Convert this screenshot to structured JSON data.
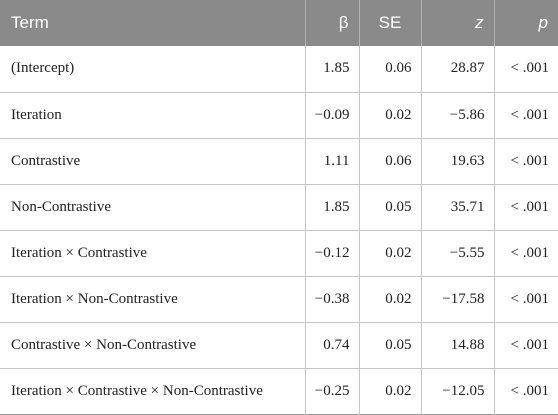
{
  "table": {
    "headers": {
      "term": "Term",
      "beta": "β",
      "se": "SE",
      "z": "z",
      "p": "p"
    },
    "rows": [
      {
        "term": "(Intercept)",
        "beta": "1.85",
        "se": "0.06",
        "z": "28.87",
        "p": "< .001"
      },
      {
        "term": "Iteration",
        "beta": "−0.09",
        "se": "0.02",
        "z": "−5.86",
        "p": "< .001"
      },
      {
        "term": "Contrastive",
        "beta": "1.11",
        "se": "0.06",
        "z": "19.63",
        "p": "< .001"
      },
      {
        "term": "Non-Contrastive",
        "beta": "1.85",
        "se": "0.05",
        "z": "35.71",
        "p": "< .001"
      },
      {
        "term": "Iteration × Contrastive",
        "beta": "−0.12",
        "se": "0.02",
        "z": "−5.55",
        "p": "< .001"
      },
      {
        "term": "Iteration × Non-Contrastive",
        "beta": "−0.38",
        "se": "0.02",
        "z": "−17.58",
        "p": "< .001"
      },
      {
        "term": "Contrastive × Non-Contrastive",
        "beta": "0.74",
        "se": "0.05",
        "z": "14.88",
        "p": "< .001"
      },
      {
        "term": "Iteration × Contrastive × Non-Contrastive",
        "beta": "−0.25",
        "se": "0.02",
        "z": "−12.05",
        "p": "< .001"
      }
    ]
  }
}
